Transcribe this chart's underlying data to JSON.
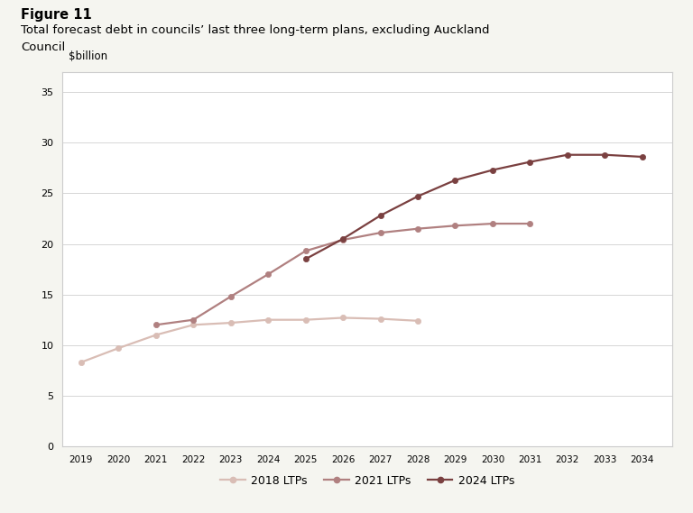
{
  "title_line1": "Figure 11",
  "title_line2": "Total forecast debt in councils’ last three long-term plans, excluding Auckland",
  "title_line3": "Council",
  "ylabel": "$billion",
  "ylim": [
    0,
    37
  ],
  "yticks": [
    0,
    5,
    10,
    15,
    20,
    25,
    30,
    35
  ],
  "series": {
    "2018 LTPs": {
      "years": [
        2019,
        2020,
        2021,
        2022,
        2023,
        2024,
        2025,
        2026,
        2027,
        2028
      ],
      "values": [
        8.3,
        9.7,
        11.0,
        12.0,
        12.2,
        12.5,
        12.5,
        12.7,
        12.6,
        12.4
      ],
      "color": "#d9bdb5",
      "linewidth": 1.6,
      "marker": "o",
      "markersize": 4.5,
      "zorder": 1
    },
    "2021 LTPs": {
      "years": [
        2021,
        2022,
        2023,
        2024,
        2025,
        2026,
        2027,
        2028,
        2029,
        2030,
        2031
      ],
      "values": [
        12.0,
        12.5,
        14.8,
        17.0,
        19.3,
        20.4,
        21.1,
        21.5,
        21.8,
        22.0,
        22.0
      ],
      "color": "#b08080",
      "linewidth": 1.6,
      "marker": "o",
      "markersize": 4.5,
      "zorder": 2
    },
    "2024 LTPs": {
      "years": [
        2025,
        2026,
        2027,
        2028,
        2029,
        2030,
        2031,
        2032,
        2033,
        2034
      ],
      "values": [
        18.5,
        20.5,
        22.8,
        24.7,
        26.3,
        27.3,
        28.1,
        28.8,
        28.8,
        28.6
      ],
      "color": "#7a4040",
      "linewidth": 1.6,
      "marker": "o",
      "markersize": 4.5,
      "zorder": 3
    }
  },
  "xlim": [
    2018.5,
    2034.8
  ],
  "xticks": [
    2019,
    2020,
    2021,
    2022,
    2023,
    2024,
    2025,
    2026,
    2027,
    2028,
    2029,
    2030,
    2031,
    2032,
    2033,
    2034
  ],
  "background_color": "#f5f5f0",
  "plot_bg_color": "#ffffff",
  "grid_color": "#d0d0d0",
  "border_color": "#cccccc",
  "legend_labels": [
    "2018 LTPs",
    "2021 LTPs",
    "2024 LTPs"
  ]
}
